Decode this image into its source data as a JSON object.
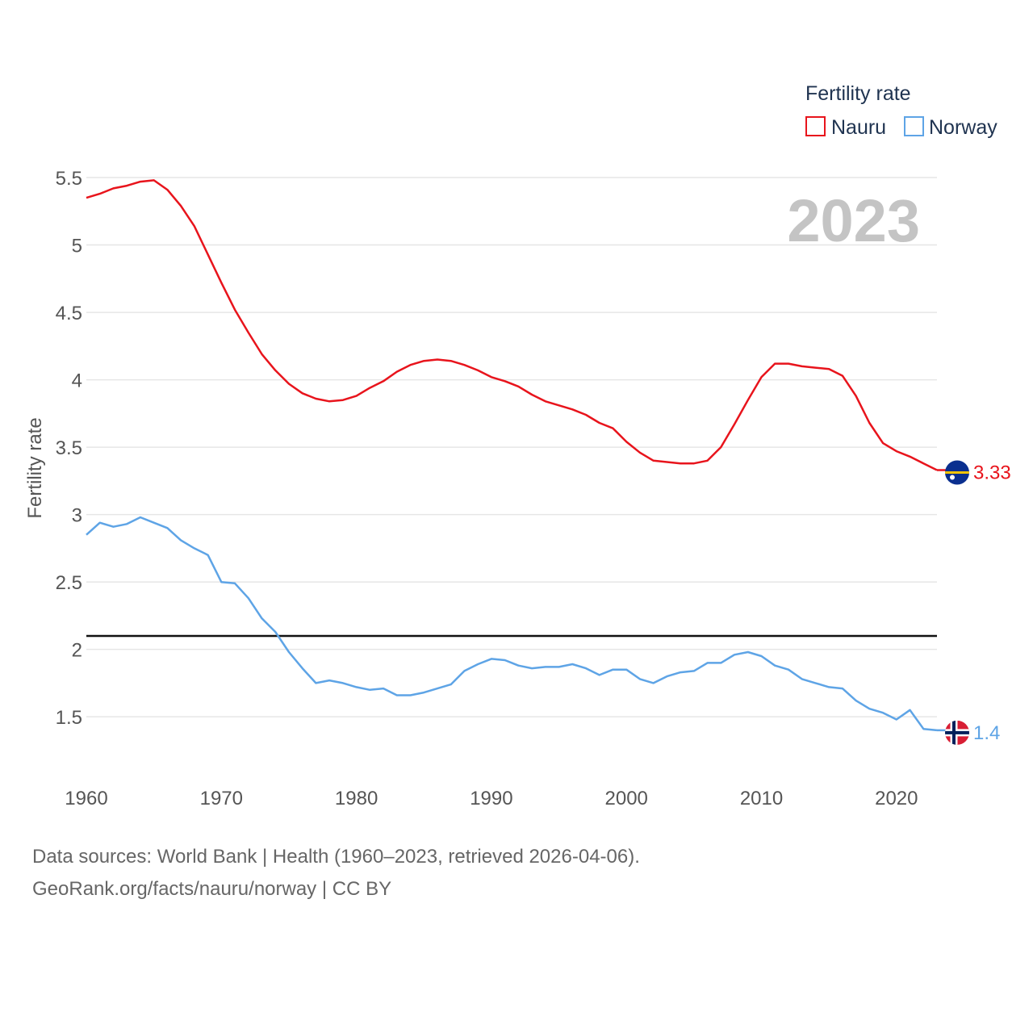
{
  "chart_data": {
    "type": "line",
    "ylabel": "Fertility rate",
    "xlabel": "",
    "xlim": [
      1960,
      2023
    ],
    "ylim": [
      1.1,
      5.62
    ],
    "x_ticks": [
      1960,
      1970,
      1980,
      1990,
      2000,
      2010,
      2020
    ],
    "y_ticks": [
      1.5,
      2,
      2.5,
      3,
      3.5,
      4,
      4.5,
      5,
      5.5
    ],
    "y_tick_labels": [
      "1.5",
      "2",
      "2.5",
      "3",
      "3.5",
      "4",
      "4.5",
      "5",
      "5.5"
    ],
    "x_tick_labels": [
      "1960",
      "1970",
      "1980",
      "1990",
      "2000",
      "2010",
      "2020"
    ],
    "legend_title": "Fertility rate",
    "year_label": "2023",
    "reference_line": 2.1,
    "x": [
      1960,
      1961,
      1962,
      1963,
      1964,
      1965,
      1966,
      1967,
      1968,
      1969,
      1970,
      1971,
      1972,
      1973,
      1974,
      1975,
      1976,
      1977,
      1978,
      1979,
      1980,
      1981,
      1982,
      1983,
      1984,
      1985,
      1986,
      1987,
      1988,
      1989,
      1990,
      1991,
      1992,
      1993,
      1994,
      1995,
      1996,
      1997,
      1998,
      1999,
      2000,
      2001,
      2002,
      2003,
      2004,
      2005,
      2006,
      2007,
      2008,
      2009,
      2010,
      2011,
      2012,
      2013,
      2014,
      2015,
      2016,
      2017,
      2018,
      2019,
      2020,
      2021,
      2022,
      2023
    ],
    "series": [
      {
        "name": "Nauru",
        "color": "#e8141c",
        "end_label": "3.33",
        "flag": "nauru",
        "values": [
          5.35,
          5.38,
          5.42,
          5.44,
          5.47,
          5.48,
          5.41,
          5.29,
          5.14,
          4.93,
          4.72,
          4.52,
          4.35,
          4.19,
          4.07,
          3.97,
          3.9,
          3.86,
          3.84,
          3.85,
          3.88,
          3.94,
          3.99,
          4.06,
          4.11,
          4.14,
          4.15,
          4.14,
          4.11,
          4.07,
          4.02,
          3.99,
          3.95,
          3.89,
          3.84,
          3.81,
          3.78,
          3.74,
          3.68,
          3.64,
          3.54,
          3.46,
          3.4,
          3.39,
          3.38,
          3.38,
          3.4,
          3.5,
          3.67,
          3.85,
          4.02,
          4.12,
          4.12,
          4.1,
          4.09,
          4.08,
          4.03,
          3.88,
          3.68,
          3.53,
          3.47,
          3.43,
          3.38,
          3.33
        ]
      },
      {
        "name": "Norway",
        "color": "#5ea4e6",
        "end_label": "1.4",
        "flag": "norway",
        "values": [
          2.85,
          2.94,
          2.91,
          2.93,
          2.98,
          2.94,
          2.9,
          2.81,
          2.75,
          2.7,
          2.5,
          2.49,
          2.38,
          2.23,
          2.13,
          1.98,
          1.86,
          1.75,
          1.77,
          1.75,
          1.72,
          1.7,
          1.71,
          1.66,
          1.66,
          1.68,
          1.71,
          1.74,
          1.84,
          1.89,
          1.93,
          1.92,
          1.88,
          1.86,
          1.87,
          1.87,
          1.89,
          1.86,
          1.81,
          1.85,
          1.85,
          1.78,
          1.75,
          1.8,
          1.83,
          1.84,
          1.9,
          1.9,
          1.96,
          1.98,
          1.95,
          1.88,
          1.85,
          1.78,
          1.75,
          1.72,
          1.71,
          1.62,
          1.56,
          1.53,
          1.48,
          1.55,
          1.41,
          1.4
        ]
      }
    ]
  },
  "footer": {
    "source_line": "Data sources: World Bank | Health (1960–2023, retrieved 2026-04-06).",
    "link_line": "GeoRank.org/facts/nauru/norway | CC BY"
  }
}
